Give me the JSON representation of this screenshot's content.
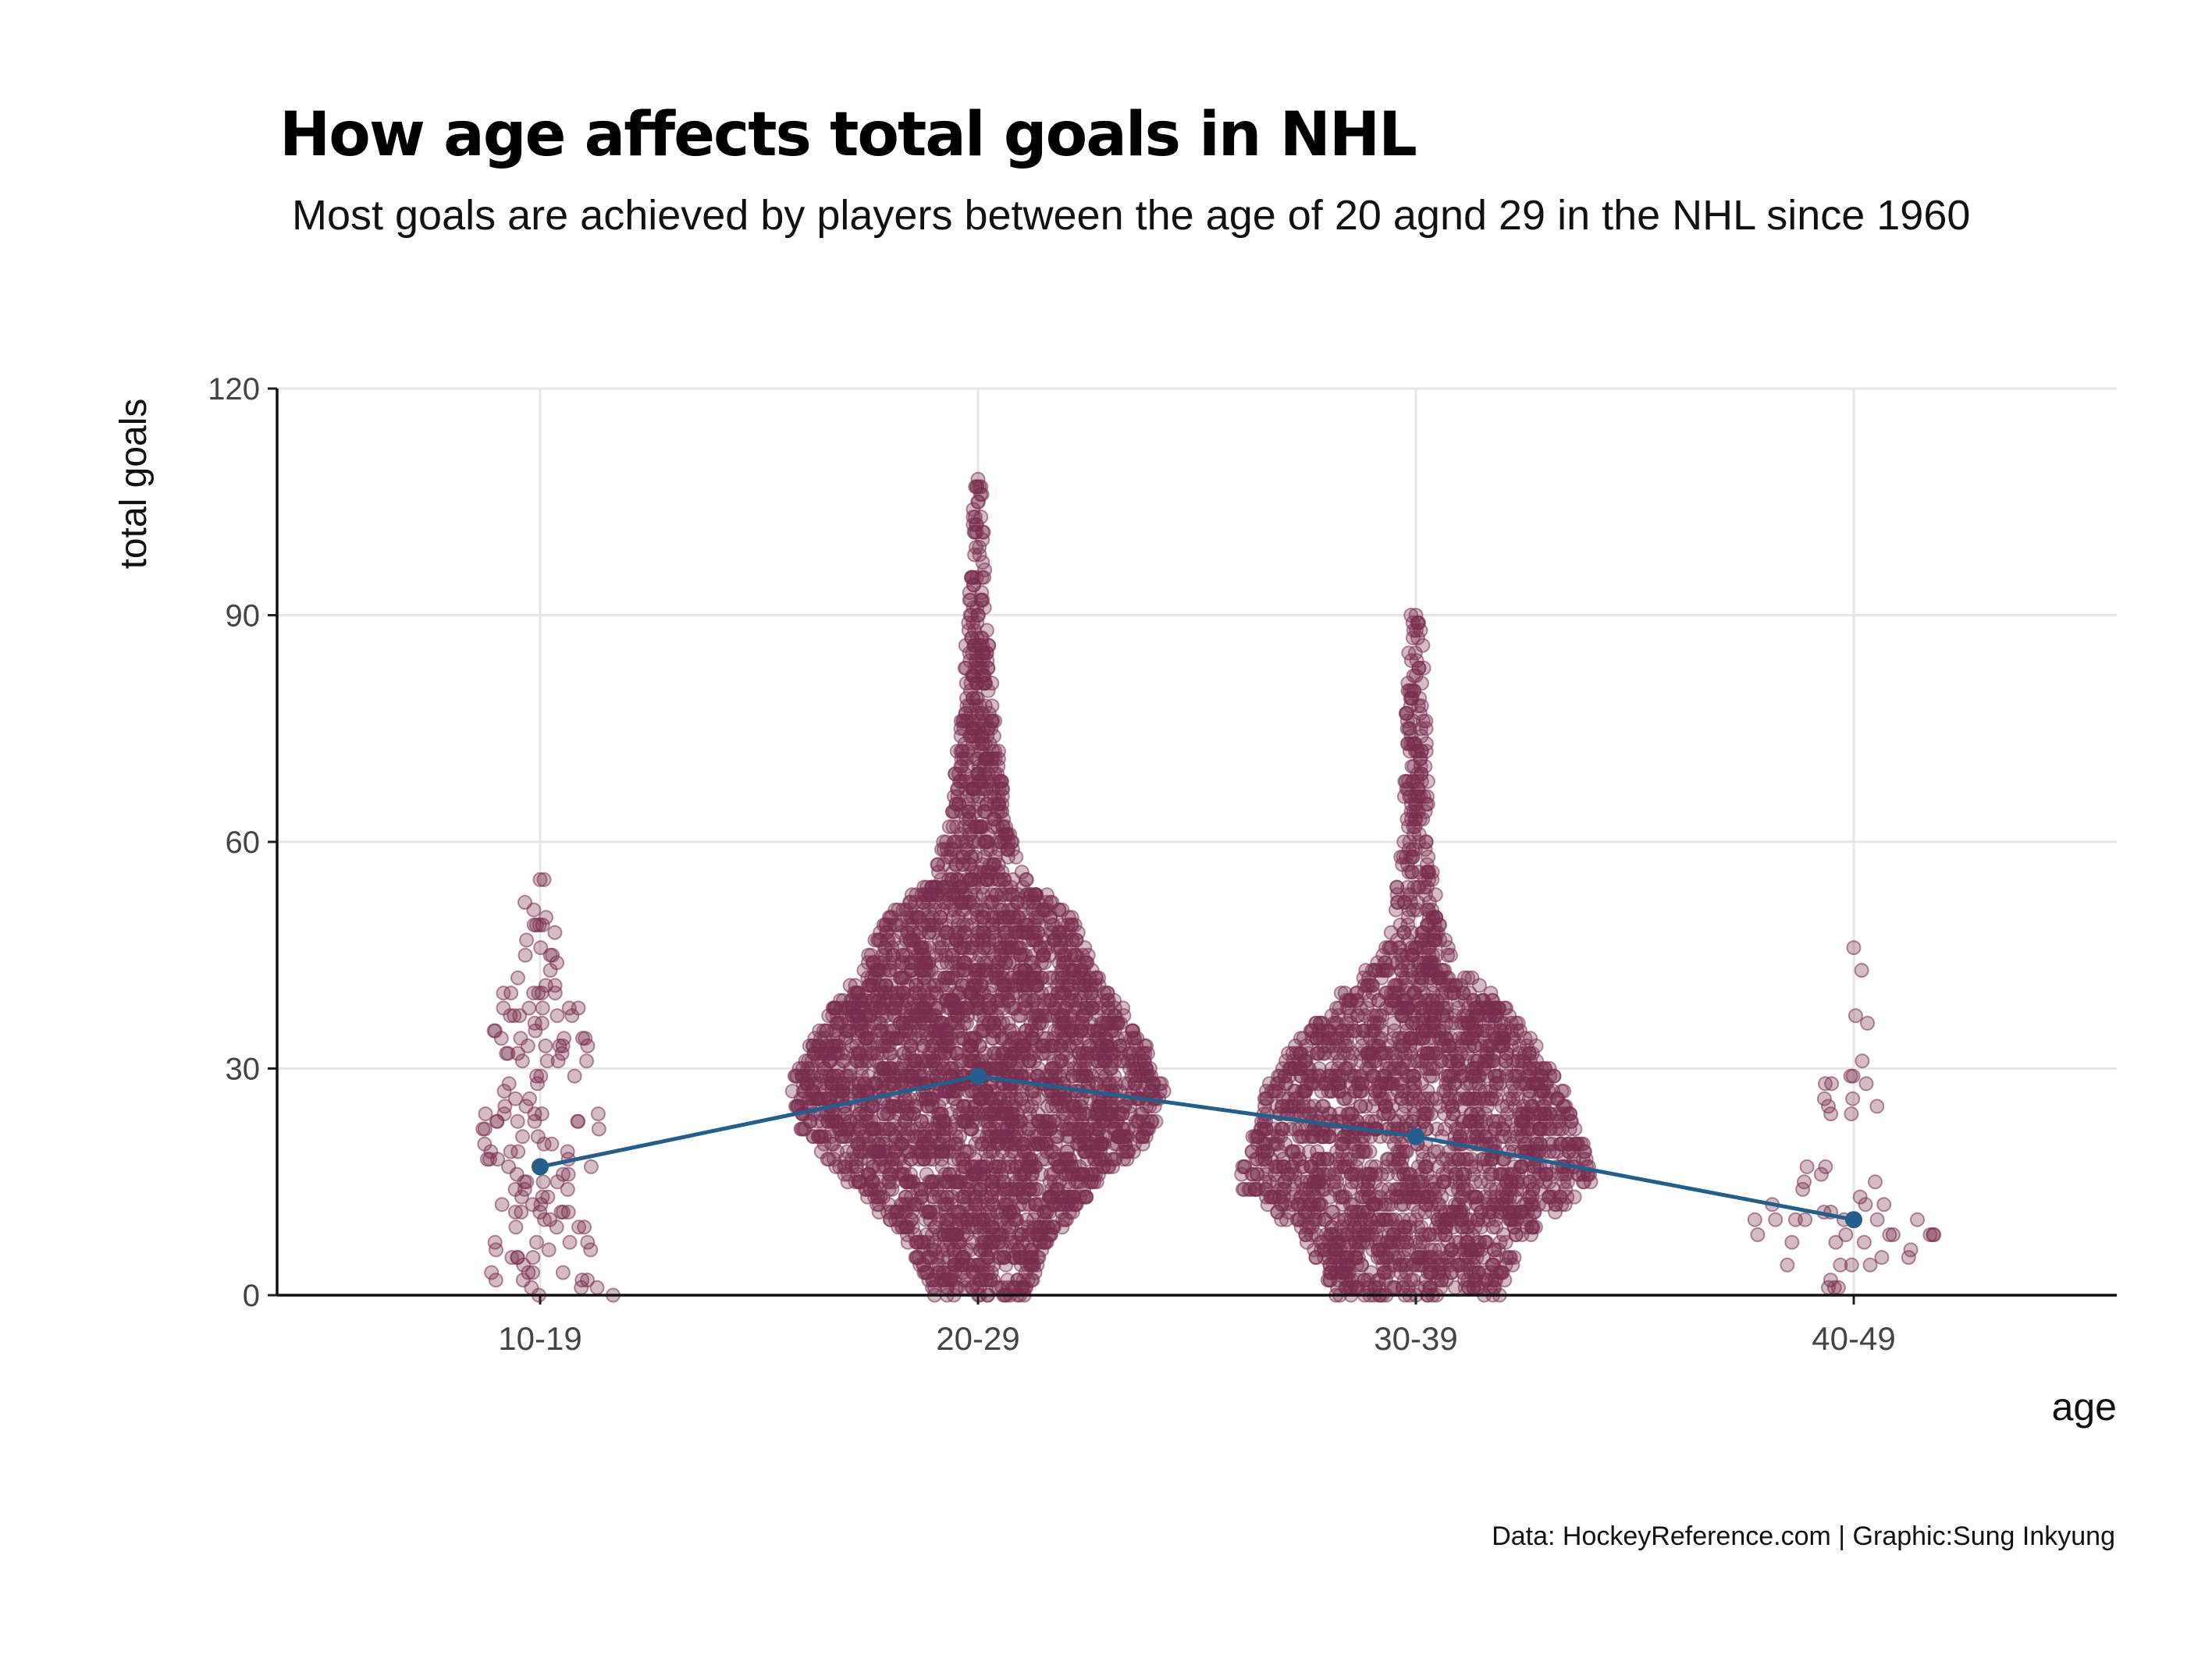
{
  "chart_data": {
    "type": "scatter",
    "title": "How age affects total goals in NHL",
    "subtitle": "Most goals are achieved by players between the age of 20 agnd 29 in the NHL since 1960",
    "caption": "Data: HockeyReference.com | Graphic:Sung Inkyung",
    "xlabel": "age",
    "ylabel": "total goals",
    "categories": [
      "10-19",
      "20-29",
      "30-39",
      "40-49"
    ],
    "ylim": [
      0,
      120
    ],
    "yticks": [
      0,
      30,
      60,
      90,
      120
    ],
    "grid": true,
    "point_color": "#7a2e4f",
    "line_color": "#255e8a",
    "swarm_profiles": [
      {
        "category": "10-19",
        "count": 150,
        "max": 55,
        "profile": [
          [
            0,
            5
          ],
          [
            3,
            3
          ],
          [
            10,
            2.5
          ],
          [
            20,
            3.5
          ],
          [
            30,
            3
          ],
          [
            40,
            2
          ],
          [
            45,
            1
          ],
          [
            51,
            1
          ],
          [
            55,
            0.4
          ]
        ]
      },
      {
        "category": "20-29",
        "count": 3600,
        "max": 108,
        "profile": [
          [
            0,
            2.5
          ],
          [
            8,
            4
          ],
          [
            15,
            7
          ],
          [
            22,
            9.5
          ],
          [
            28,
            10
          ],
          [
            35,
            8.5
          ],
          [
            42,
            6.5
          ],
          [
            50,
            5
          ],
          [
            55,
            2.5
          ],
          [
            62,
            1.6
          ],
          [
            70,
            1.2
          ],
          [
            80,
            0.8
          ],
          [
            88,
            0.6
          ],
          [
            94,
            0.4
          ],
          [
            108,
            0.2
          ]
        ]
      },
      {
        "category": "30-39",
        "count": 2400,
        "max": 90,
        "profile": [
          [
            0,
            4.5
          ],
          [
            8,
            6
          ],
          [
            15,
            9.5
          ],
          [
            20,
            9
          ],
          [
            27,
            8
          ],
          [
            33,
            6.5
          ],
          [
            40,
            4
          ],
          [
            45,
            1.8
          ],
          [
            50,
            1.2
          ],
          [
            60,
            0.8
          ],
          [
            70,
            0.6
          ],
          [
            80,
            0.5
          ],
          [
            90,
            0.3
          ]
        ]
      },
      {
        "category": "40-49",
        "count": 55,
        "max": 46,
        "profile": [
          [
            0,
            2
          ],
          [
            6,
            5
          ],
          [
            10,
            5.5
          ],
          [
            15,
            3.5
          ],
          [
            20,
            2
          ],
          [
            26,
            2
          ],
          [
            32,
            1
          ],
          [
            40,
            0.6
          ],
          [
            46,
            0.3
          ]
        ]
      }
    ],
    "series": [
      {
        "type": "line",
        "values": [
          17,
          29,
          21,
          10
        ]
      }
    ]
  }
}
